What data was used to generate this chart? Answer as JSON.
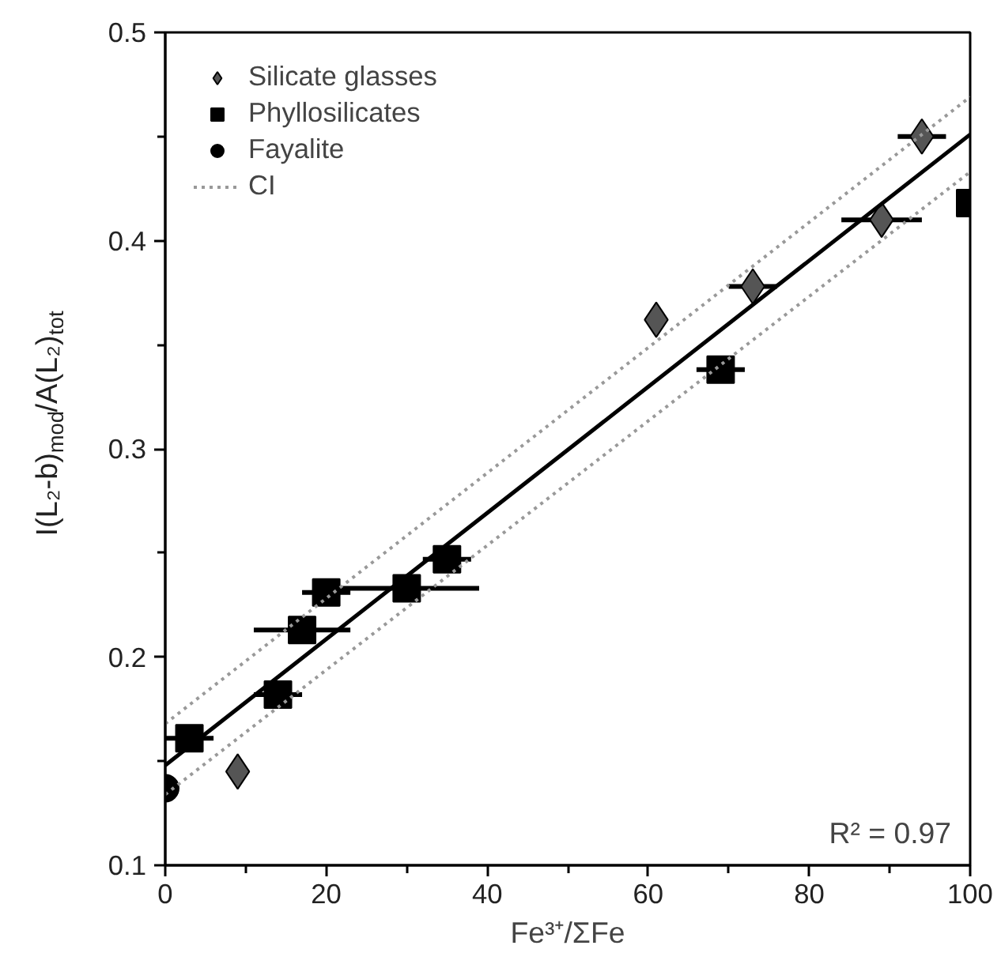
{
  "chart_data": {
    "type": "scatter",
    "xlabel": "Fe³⁺/ΣFe",
    "ylabel": "I(L₂-b)$_{mod}$/A(L₂)$_{tot}$",
    "xlim": [
      0,
      100
    ],
    "ylim": [
      0.1,
      0.5
    ],
    "xticks": [
      0,
      {
        "value": 10,
        "label": null
      },
      20,
      {
        "value": 30,
        "label": null
      },
      40,
      {
        "value": 50,
        "label": null
      },
      60,
      {
        "value": 70,
        "label": null
      },
      80,
      {
        "value": 90,
        "label": null
      },
      100
    ],
    "yticks": [
      0.1,
      {
        "value": 0.15,
        "label": null
      },
      0.2,
      {
        "value": 0.25,
        "label": null
      },
      0.3,
      {
        "value": 0.35,
        "label": null
      },
      0.4,
      {
        "value": 0.45,
        "label": null
      },
      0.5
    ],
    "grid": false,
    "legend": "top left",
    "annotations": [
      "R² = 0.97"
    ],
    "series": [
      {
        "name": "Silicate glasses",
        "type": "scatter",
        "marker": "diamond",
        "color": "#555555",
        "x": [
          9,
          61,
          73,
          89,
          94
        ],
        "values": [
          0.145,
          0.362,
          0.378,
          0.41,
          0.45
        ],
        "xerrors": [
          null,
          null,
          3,
          5,
          3
        ]
      },
      {
        "name": "Phyllosilicates",
        "type": "scatter",
        "marker": "square",
        "color": "#000000",
        "x": [
          3,
          14,
          17,
          20,
          30,
          35,
          69,
          100
        ],
        "values": [
          0.161,
          0.182,
          0.213,
          0.231,
          0.233,
          0.247,
          0.338,
          0.418
        ],
        "xerrors": [
          3,
          3,
          6,
          3,
          9,
          3,
          3,
          null
        ]
      },
      {
        "name": "Fayalite",
        "type": "scatter",
        "marker": "circle",
        "color": "#000000",
        "x": [
          0
        ],
        "values": [
          0.137
        ]
      },
      {
        "type": "line",
        "color": "#000000",
        "line_style": "solid",
        "x": [
          0,
          100
        ],
        "values": [
          0.148,
          0.451
        ]
      },
      {
        "name": "CI",
        "type": "line",
        "color": "#999999",
        "line_style": "dotted",
        "x": [
          0,
          100
        ],
        "values": [
          0.168,
          0.469
        ]
      },
      {
        "type": "line",
        "color": "#999999",
        "line_style": "dotted",
        "x": [
          0,
          100
        ],
        "values": [
          0.134,
          0.433
        ]
      }
    ]
  }
}
